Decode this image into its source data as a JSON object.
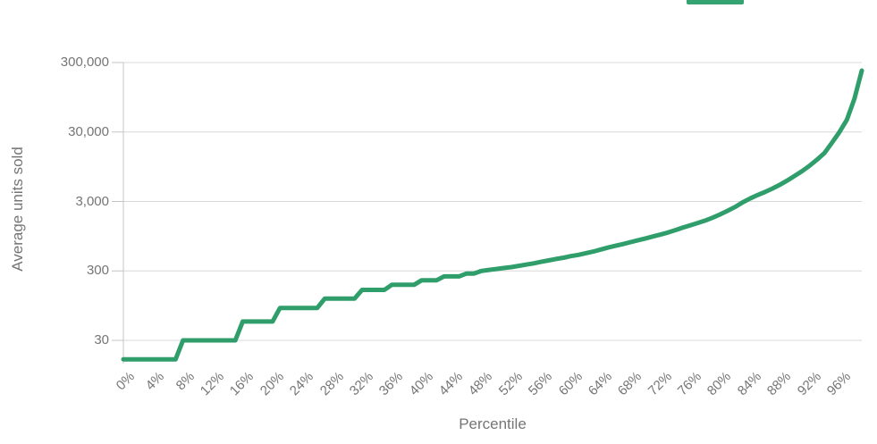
{
  "chart_data": {
    "type": "line",
    "title": "",
    "xlabel": "Percentile",
    "ylabel": "Average units sold",
    "y_scale": "log",
    "xlim": [
      0,
      99
    ],
    "ylim": [
      14,
      300000
    ],
    "grid": "horizontal-only",
    "legend_position": "top-right (label cut off above screenshot edge, only swatch visible)",
    "y_ticks": {
      "values": [
        300000,
        30000,
        3000,
        300,
        30
      ],
      "labels": [
        "300,000",
        "30,000",
        "3,000",
        "300",
        "30"
      ]
    },
    "x_ticks": {
      "values": [
        0,
        4,
        8,
        12,
        16,
        20,
        24,
        28,
        32,
        36,
        40,
        44,
        48,
        52,
        56,
        60,
        64,
        68,
        72,
        76,
        80,
        84,
        88,
        92,
        96
      ],
      "labels": [
        "0%",
        "4%",
        "8%",
        "12%",
        "16%",
        "20%",
        "24%",
        "28%",
        "32%",
        "36%",
        "40%",
        "44%",
        "48%",
        "52%",
        "56%",
        "60%",
        "64%",
        "68%",
        "72%",
        "76%",
        "80%",
        "84%",
        "88%",
        "92%",
        "96%"
      ]
    },
    "x": [
      0,
      1,
      2,
      3,
      4,
      5,
      6,
      7,
      8,
      9,
      10,
      11,
      12,
      13,
      14,
      15,
      16,
      17,
      18,
      19,
      20,
      21,
      22,
      23,
      24,
      25,
      26,
      27,
      28,
      29,
      30,
      31,
      32,
      33,
      34,
      35,
      36,
      37,
      38,
      39,
      40,
      41,
      42,
      43,
      44,
      45,
      46,
      47,
      48,
      49,
      50,
      51,
      52,
      53,
      54,
      55,
      56,
      57,
      58,
      59,
      60,
      61,
      62,
      63,
      64,
      65,
      66,
      67,
      68,
      69,
      70,
      71,
      72,
      73,
      74,
      75,
      76,
      77,
      78,
      79,
      80,
      81,
      82,
      83,
      84,
      85,
      86,
      87,
      88,
      89,
      90,
      91,
      92,
      93,
      94,
      95,
      96,
      97,
      98,
      99
    ],
    "values": [
      16,
      16,
      16,
      16,
      16,
      16,
      16,
      16,
      30,
      30,
      30,
      30,
      30,
      30,
      30,
      30,
      56,
      56,
      56,
      56,
      56,
      88,
      88,
      88,
      88,
      88,
      88,
      120,
      120,
      120,
      120,
      120,
      160,
      160,
      160,
      160,
      190,
      190,
      190,
      190,
      220,
      220,
      220,
      250,
      250,
      250,
      275,
      275,
      300,
      310,
      320,
      330,
      340,
      355,
      370,
      385,
      405,
      425,
      445,
      465,
      490,
      510,
      540,
      570,
      610,
      650,
      690,
      730,
      780,
      830,
      880,
      940,
      1000,
      1070,
      1160,
      1260,
      1360,
      1470,
      1590,
      1750,
      1950,
      2200,
      2500,
      2900,
      3300,
      3700,
      4100,
      4600,
      5200,
      6000,
      7000,
      8200,
      9800,
      12000,
      15000,
      21000,
      30000,
      45000,
      90000,
      230000
    ]
  },
  "colors": {
    "series": "#2f9e6b",
    "legend_swatch": "#35a371",
    "gridline": "#d8d8d8",
    "axis_line": "#c4c4c4",
    "tick_text": "#757575"
  }
}
